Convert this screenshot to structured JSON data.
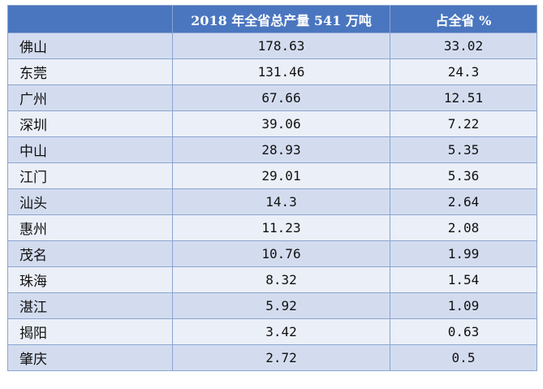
{
  "table": {
    "headers": [
      "",
      "2018 年全省总产量 541 万吨",
      "占全省 %"
    ],
    "rows": [
      {
        "city": "佛山",
        "output": "178.63",
        "share": "33.02"
      },
      {
        "city": "东莞",
        "output": "131.46",
        "share": "24.3"
      },
      {
        "city": "广州",
        "output": "67.66",
        "share": "12.51"
      },
      {
        "city": "深圳",
        "output": "39.06",
        "share": "7.22"
      },
      {
        "city": "中山",
        "output": "28.93",
        "share": "5.35"
      },
      {
        "city": "江门",
        "output": "29.01",
        "share": "5.36"
      },
      {
        "city": "汕头",
        "output": "14.3",
        "share": "2.64"
      },
      {
        "city": "惠州",
        "output": "11.23",
        "share": "2.08"
      },
      {
        "city": "茂名",
        "output": "10.76",
        "share": "1.99"
      },
      {
        "city": "珠海",
        "output": "8.32",
        "share": "1.54"
      },
      {
        "city": "湛江",
        "output": "5.92",
        "share": "1.09"
      },
      {
        "city": "揭阳",
        "output": "3.42",
        "share": "0.63"
      },
      {
        "city": "肇庆",
        "output": "2.72",
        "share": "0.5"
      }
    ]
  },
  "colors": {
    "header_bg": "#4a76bf",
    "row_odd": "#d3dcef",
    "row_even": "#ebeff7",
    "border": "#8aa4cf"
  }
}
